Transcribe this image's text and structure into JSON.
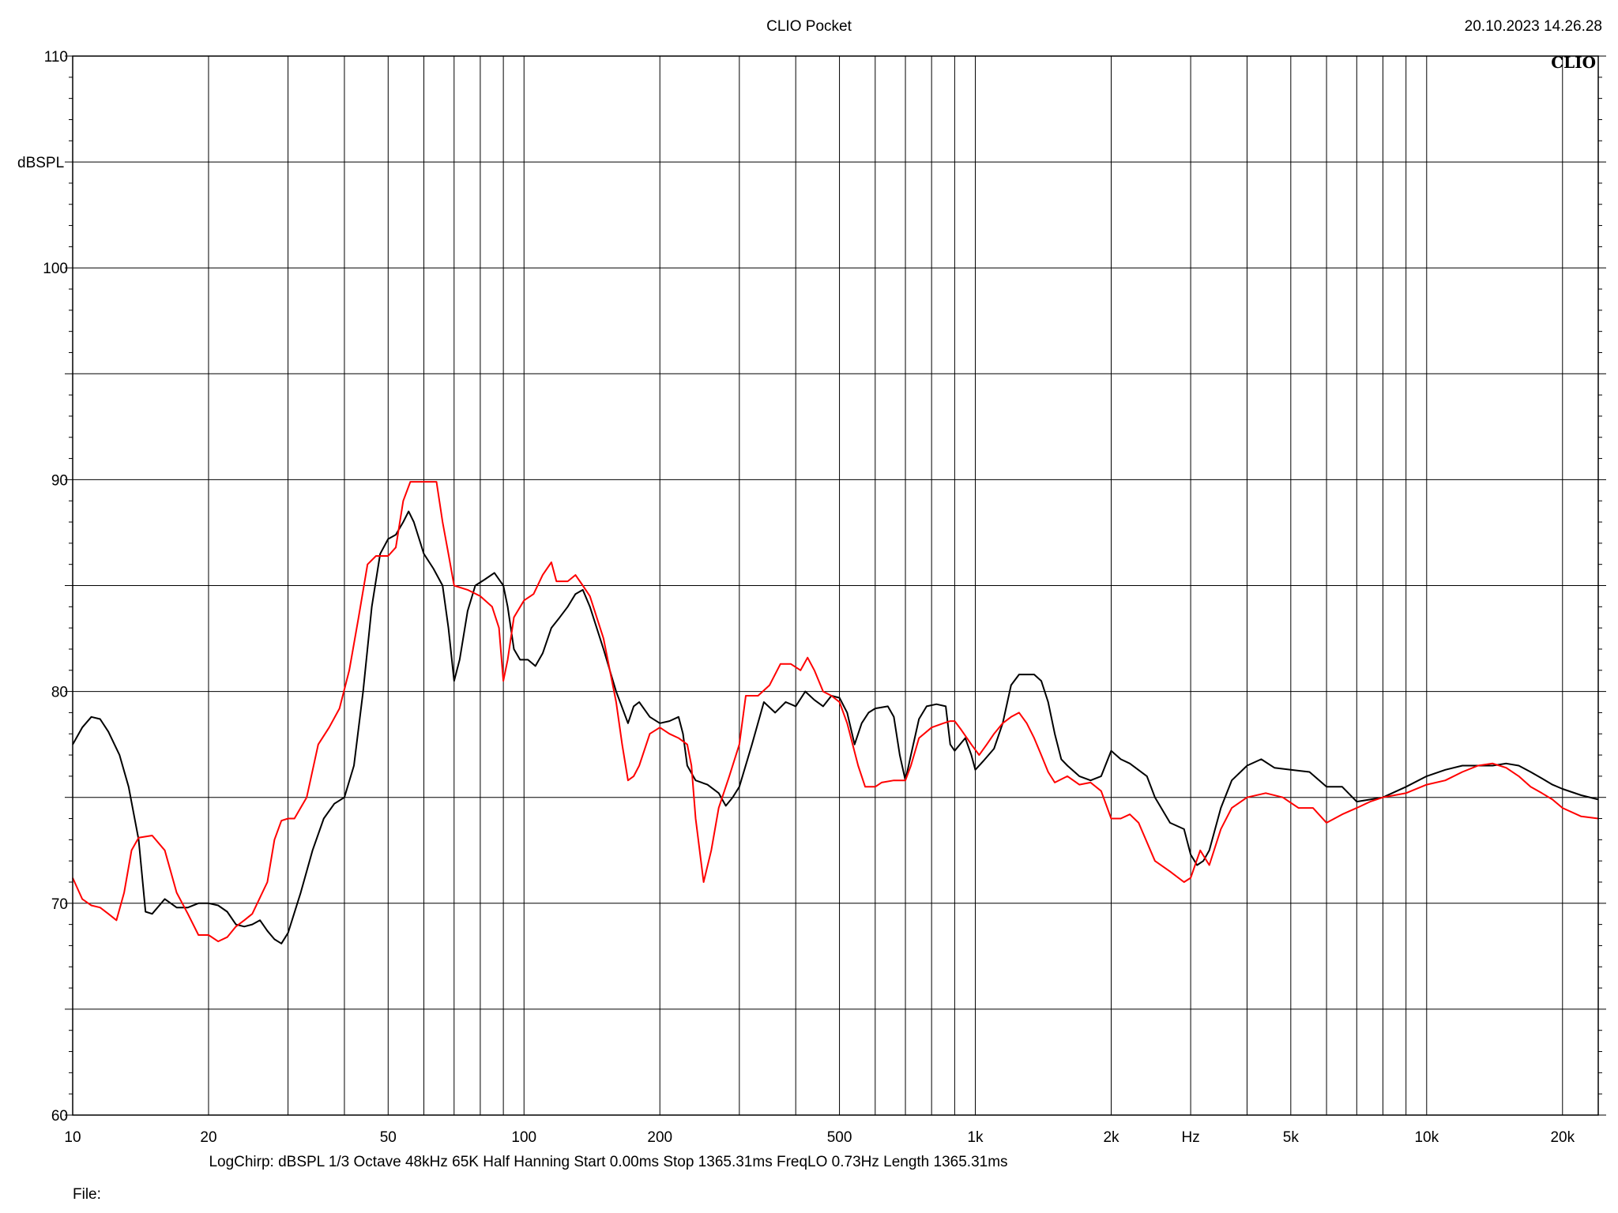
{
  "header": {
    "title": "CLIO Pocket",
    "datetime": "20.10.2023 14.26.28"
  },
  "logo": "CLIO",
  "footer": {
    "info": "LogChirp:  dBSPL   1/3 Octave   48kHz   65K   Half Hanning   Start 0.00ms    Stop 1365.31ms    FreqLO 0.73Hz    Length 1365.31ms",
    "file": "File:"
  },
  "chart_data": {
    "type": "line",
    "ylabel": "dBSPL",
    "xlabel": "Hz",
    "x_scale": "log",
    "xlim": [
      10,
      24000
    ],
    "ylim": [
      60,
      110
    ],
    "grid": true,
    "y_ticks": [
      60,
      70,
      80,
      90,
      100,
      110
    ],
    "x_ticks": [
      {
        "value": 10,
        "label": "10"
      },
      {
        "value": 20,
        "label": "20"
      },
      {
        "value": 50,
        "label": "50"
      },
      {
        "value": 100,
        "label": "100"
      },
      {
        "value": 200,
        "label": "200"
      },
      {
        "value": 500,
        "label": "500"
      },
      {
        "value": 1000,
        "label": "1k"
      },
      {
        "value": 2000,
        "label": "2k"
      },
      {
        "value": 5000,
        "label": "5k"
      },
      {
        "value": 10000,
        "label": "10k"
      },
      {
        "value": 20000,
        "label": "20k"
      }
    ],
    "series": [
      {
        "color": "#000000",
        "points": [
          [
            10,
            77.5
          ],
          [
            10.5,
            78.3
          ],
          [
            11,
            78.8
          ],
          [
            11.5,
            78.7
          ],
          [
            12,
            78.1
          ],
          [
            12.7,
            77
          ],
          [
            13.3,
            75.5
          ],
          [
            14,
            73
          ],
          [
            14.5,
            69.6
          ],
          [
            15,
            69.5
          ],
          [
            16,
            70.2
          ],
          [
            17,
            69.8
          ],
          [
            18,
            69.8
          ],
          [
            19,
            70
          ],
          [
            20,
            70
          ],
          [
            21,
            69.9
          ],
          [
            22,
            69.6
          ],
          [
            23,
            69
          ],
          [
            24,
            68.9
          ],
          [
            25,
            69
          ],
          [
            26,
            69.2
          ],
          [
            27,
            68.7
          ],
          [
            28,
            68.3
          ],
          [
            29,
            68.1
          ],
          [
            30,
            68.6
          ],
          [
            32,
            70.5
          ],
          [
            34,
            72.5
          ],
          [
            36,
            74
          ],
          [
            38,
            74.7
          ],
          [
            40,
            75
          ],
          [
            42,
            76.5
          ],
          [
            44,
            80
          ],
          [
            46,
            84
          ],
          [
            48,
            86.5
          ],
          [
            50,
            87.2
          ],
          [
            52,
            87.4
          ],
          [
            54,
            88
          ],
          [
            55.5,
            88.5
          ],
          [
            57,
            88
          ],
          [
            60,
            86.5
          ],
          [
            63,
            85.8
          ],
          [
            66,
            85
          ],
          [
            68,
            83
          ],
          [
            70,
            80.5
          ],
          [
            72,
            81.5
          ],
          [
            75,
            83.8
          ],
          [
            78,
            85
          ],
          [
            82,
            85.3
          ],
          [
            86,
            85.6
          ],
          [
            90,
            85
          ],
          [
            92,
            84
          ],
          [
            95,
            82
          ],
          [
            98,
            81.5
          ],
          [
            102,
            81.5
          ],
          [
            106,
            81.2
          ],
          [
            110,
            81.8
          ],
          [
            115,
            83
          ],
          [
            120,
            83.5
          ],
          [
            125,
            84
          ],
          [
            130,
            84.6
          ],
          [
            135,
            84.8
          ],
          [
            140,
            84
          ],
          [
            150,
            82
          ],
          [
            160,
            80
          ],
          [
            170,
            78.5
          ],
          [
            175,
            79.3
          ],
          [
            180,
            79.5
          ],
          [
            190,
            78.8
          ],
          [
            200,
            78.5
          ],
          [
            210,
            78.6
          ],
          [
            220,
            78.8
          ],
          [
            225,
            78
          ],
          [
            230,
            76.5
          ],
          [
            240,
            75.8
          ],
          [
            255,
            75.6
          ],
          [
            270,
            75.2
          ],
          [
            280,
            74.6
          ],
          [
            290,
            75
          ],
          [
            300,
            75.5
          ],
          [
            320,
            77.5
          ],
          [
            340,
            79.5
          ],
          [
            360,
            79
          ],
          [
            380,
            79.5
          ],
          [
            400,
            79.3
          ],
          [
            420,
            80
          ],
          [
            440,
            79.6
          ],
          [
            460,
            79.3
          ],
          [
            480,
            79.8
          ],
          [
            500,
            79.7
          ],
          [
            520,
            79
          ],
          [
            540,
            77.5
          ],
          [
            560,
            78.5
          ],
          [
            580,
            79
          ],
          [
            600,
            79.2
          ],
          [
            640,
            79.3
          ],
          [
            660,
            78.8
          ],
          [
            680,
            77
          ],
          [
            700,
            75.8
          ],
          [
            720,
            77
          ],
          [
            750,
            78.7
          ],
          [
            780,
            79.3
          ],
          [
            820,
            79.4
          ],
          [
            860,
            79.3
          ],
          [
            880,
            77.5
          ],
          [
            900,
            77.2
          ],
          [
            950,
            77.8
          ],
          [
            980,
            77
          ],
          [
            1000,
            76.3
          ],
          [
            1040,
            76.7
          ],
          [
            1100,
            77.3
          ],
          [
            1150,
            78.5
          ],
          [
            1200,
            80.3
          ],
          [
            1250,
            80.8
          ],
          [
            1300,
            80.8
          ],
          [
            1350,
            80.8
          ],
          [
            1400,
            80.5
          ],
          [
            1450,
            79.5
          ],
          [
            1500,
            78
          ],
          [
            1550,
            76.8
          ],
          [
            1600,
            76.5
          ],
          [
            1700,
            76
          ],
          [
            1800,
            75.8
          ],
          [
            1900,
            76
          ],
          [
            2000,
            77.2
          ],
          [
            2100,
            76.8
          ],
          [
            2200,
            76.6
          ],
          [
            2400,
            76
          ],
          [
            2500,
            75
          ],
          [
            2700,
            73.8
          ],
          [
            2900,
            73.5
          ],
          [
            3000,
            72.3
          ],
          [
            3100,
            71.8
          ],
          [
            3200,
            72
          ],
          [
            3300,
            72.5
          ],
          [
            3500,
            74.5
          ],
          [
            3700,
            75.8
          ],
          [
            4000,
            76.5
          ],
          [
            4300,
            76.8
          ],
          [
            4600,
            76.4
          ],
          [
            5000,
            76.3
          ],
          [
            5500,
            76.2
          ],
          [
            6000,
            75.5
          ],
          [
            6500,
            75.5
          ],
          [
            7000,
            74.8
          ],
          [
            7500,
            74.9
          ],
          [
            8000,
            75
          ],
          [
            9000,
            75.5
          ],
          [
            10000,
            76
          ],
          [
            11000,
            76.3
          ],
          [
            12000,
            76.5
          ],
          [
            13000,
            76.5
          ],
          [
            14000,
            76.5
          ],
          [
            15000,
            76.6
          ],
          [
            16000,
            76.5
          ],
          [
            17000,
            76.2
          ],
          [
            18000,
            75.9
          ],
          [
            19000,
            75.6
          ],
          [
            20000,
            75.4
          ],
          [
            22000,
            75.1
          ],
          [
            24000,
            74.9
          ]
        ]
      },
      {
        "color": "#ff0000",
        "points": [
          [
            10,
            71.2
          ],
          [
            10.5,
            70.2
          ],
          [
            11,
            69.9
          ],
          [
            11.5,
            69.8
          ],
          [
            12,
            69.5
          ],
          [
            12.5,
            69.2
          ],
          [
            13,
            70.5
          ],
          [
            13.5,
            72.5
          ],
          [
            14,
            73.1
          ],
          [
            15,
            73.2
          ],
          [
            16,
            72.5
          ],
          [
            17,
            70.5
          ],
          [
            18,
            69.5
          ],
          [
            19,
            68.5
          ],
          [
            20,
            68.5
          ],
          [
            21,
            68.2
          ],
          [
            22,
            68.4
          ],
          [
            23,
            68.9
          ],
          [
            24,
            69.2
          ],
          [
            25,
            69.5
          ],
          [
            27,
            71
          ],
          [
            28,
            73
          ],
          [
            29,
            73.9
          ],
          [
            30,
            74
          ],
          [
            31,
            74
          ],
          [
            33,
            75
          ],
          [
            35,
            77.5
          ],
          [
            37,
            78.3
          ],
          [
            39,
            79.2
          ],
          [
            41,
            81
          ],
          [
            43,
            83.5
          ],
          [
            45,
            86
          ],
          [
            47,
            86.4
          ],
          [
            50,
            86.4
          ],
          [
            52,
            86.8
          ],
          [
            54,
            89
          ],
          [
            56,
            89.9
          ],
          [
            60,
            89.9
          ],
          [
            64,
            89.9
          ],
          [
            66,
            88
          ],
          [
            68,
            86.5
          ],
          [
            70,
            85
          ],
          [
            75,
            84.8
          ],
          [
            80,
            84.5
          ],
          [
            85,
            84
          ],
          [
            88,
            83
          ],
          [
            90,
            80.5
          ],
          [
            92,
            81.5
          ],
          [
            95,
            83.5
          ],
          [
            100,
            84.3
          ],
          [
            105,
            84.6
          ],
          [
            110,
            85.5
          ],
          [
            115,
            86.1
          ],
          [
            118,
            85.2
          ],
          [
            125,
            85.2
          ],
          [
            130,
            85.5
          ],
          [
            135,
            85
          ],
          [
            140,
            84.5
          ],
          [
            150,
            82.5
          ],
          [
            160,
            79.5
          ],
          [
            165,
            77.5
          ],
          [
            170,
            75.8
          ],
          [
            175,
            76
          ],
          [
            180,
            76.5
          ],
          [
            190,
            78
          ],
          [
            200,
            78.3
          ],
          [
            210,
            78
          ],
          [
            220,
            77.8
          ],
          [
            230,
            77.5
          ],
          [
            235,
            76.5
          ],
          [
            240,
            74
          ],
          [
            250,
            71
          ],
          [
            260,
            72.5
          ],
          [
            270,
            74.5
          ],
          [
            285,
            76
          ],
          [
            300,
            77.5
          ],
          [
            310,
            79.8
          ],
          [
            330,
            79.8
          ],
          [
            350,
            80.3
          ],
          [
            370,
            81.3
          ],
          [
            390,
            81.3
          ],
          [
            410,
            81
          ],
          [
            425,
            81.6
          ],
          [
            440,
            81
          ],
          [
            460,
            80
          ],
          [
            480,
            79.8
          ],
          [
            500,
            79.5
          ],
          [
            520,
            78.5
          ],
          [
            550,
            76.5
          ],
          [
            570,
            75.5
          ],
          [
            600,
            75.5
          ],
          [
            620,
            75.7
          ],
          [
            660,
            75.8
          ],
          [
            700,
            75.8
          ],
          [
            720,
            76.5
          ],
          [
            750,
            77.8
          ],
          [
            800,
            78.3
          ],
          [
            850,
            78.5
          ],
          [
            880,
            78.6
          ],
          [
            900,
            78.6
          ],
          [
            930,
            78.2
          ],
          [
            980,
            77.5
          ],
          [
            1020,
            77
          ],
          [
            1060,
            77.5
          ],
          [
            1100,
            78
          ],
          [
            1150,
            78.5
          ],
          [
            1200,
            78.8
          ],
          [
            1250,
            79
          ],
          [
            1300,
            78.5
          ],
          [
            1350,
            77.8
          ],
          [
            1400,
            77
          ],
          [
            1450,
            76.2
          ],
          [
            1500,
            75.7
          ],
          [
            1600,
            76
          ],
          [
            1700,
            75.6
          ],
          [
            1800,
            75.7
          ],
          [
            1900,
            75.3
          ],
          [
            2000,
            74
          ],
          [
            2100,
            74
          ],
          [
            2200,
            74.2
          ],
          [
            2300,
            73.8
          ],
          [
            2500,
            72
          ],
          [
            2700,
            71.5
          ],
          [
            2900,
            71
          ],
          [
            3000,
            71.2
          ],
          [
            3150,
            72.5
          ],
          [
            3300,
            71.8
          ],
          [
            3500,
            73.5
          ],
          [
            3700,
            74.5
          ],
          [
            4000,
            75
          ],
          [
            4400,
            75.2
          ],
          [
            4800,
            75
          ],
          [
            5200,
            74.5
          ],
          [
            5600,
            74.5
          ],
          [
            6000,
            73.8
          ],
          [
            6500,
            74.2
          ],
          [
            7000,
            74.5
          ],
          [
            7500,
            74.8
          ],
          [
            8000,
            75
          ],
          [
            9000,
            75.2
          ],
          [
            10000,
            75.6
          ],
          [
            11000,
            75.8
          ],
          [
            12000,
            76.2
          ],
          [
            13000,
            76.5
          ],
          [
            14000,
            76.6
          ],
          [
            15000,
            76.4
          ],
          [
            16000,
            76
          ],
          [
            17000,
            75.5
          ],
          [
            18000,
            75.2
          ],
          [
            19000,
            74.9
          ],
          [
            20000,
            74.5
          ],
          [
            22000,
            74.1
          ],
          [
            24000,
            74
          ]
        ]
      }
    ]
  }
}
